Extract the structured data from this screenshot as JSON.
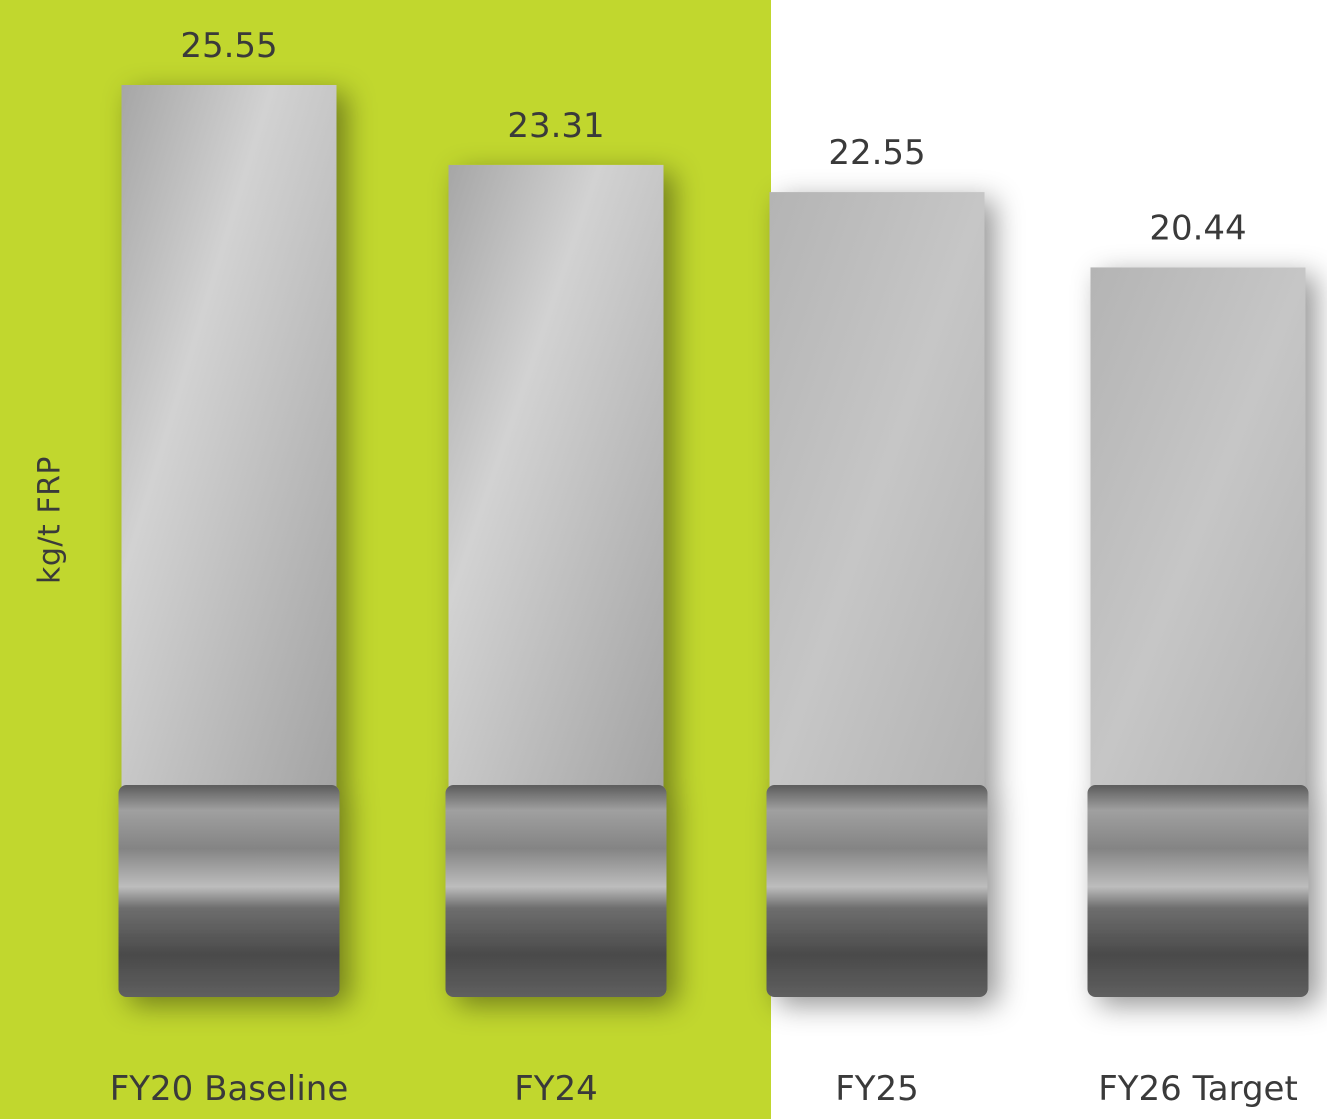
{
  "chart_data": {
    "type": "bar",
    "categories": [
      "FY20 Baseline",
      "FY24",
      "FY25",
      "FY26 Target"
    ],
    "values": [
      25.55,
      23.31,
      22.55,
      20.44
    ],
    "data_labels": [
      "25.55",
      "23.31",
      "22.55",
      "20.44"
    ],
    "title": "",
    "xlabel": "",
    "ylabel": "kg/t FRP",
    "ylim": [
      0,
      25.55
    ],
    "grid": false,
    "legend": "none",
    "highlighted_categories": [
      "FY20 Baseline",
      "FY24"
    ],
    "colors": {
      "highlight": "#c1d72e",
      "background": "#ffffff",
      "bar": "#b8b8b8",
      "text": "#3a3a3a"
    }
  }
}
